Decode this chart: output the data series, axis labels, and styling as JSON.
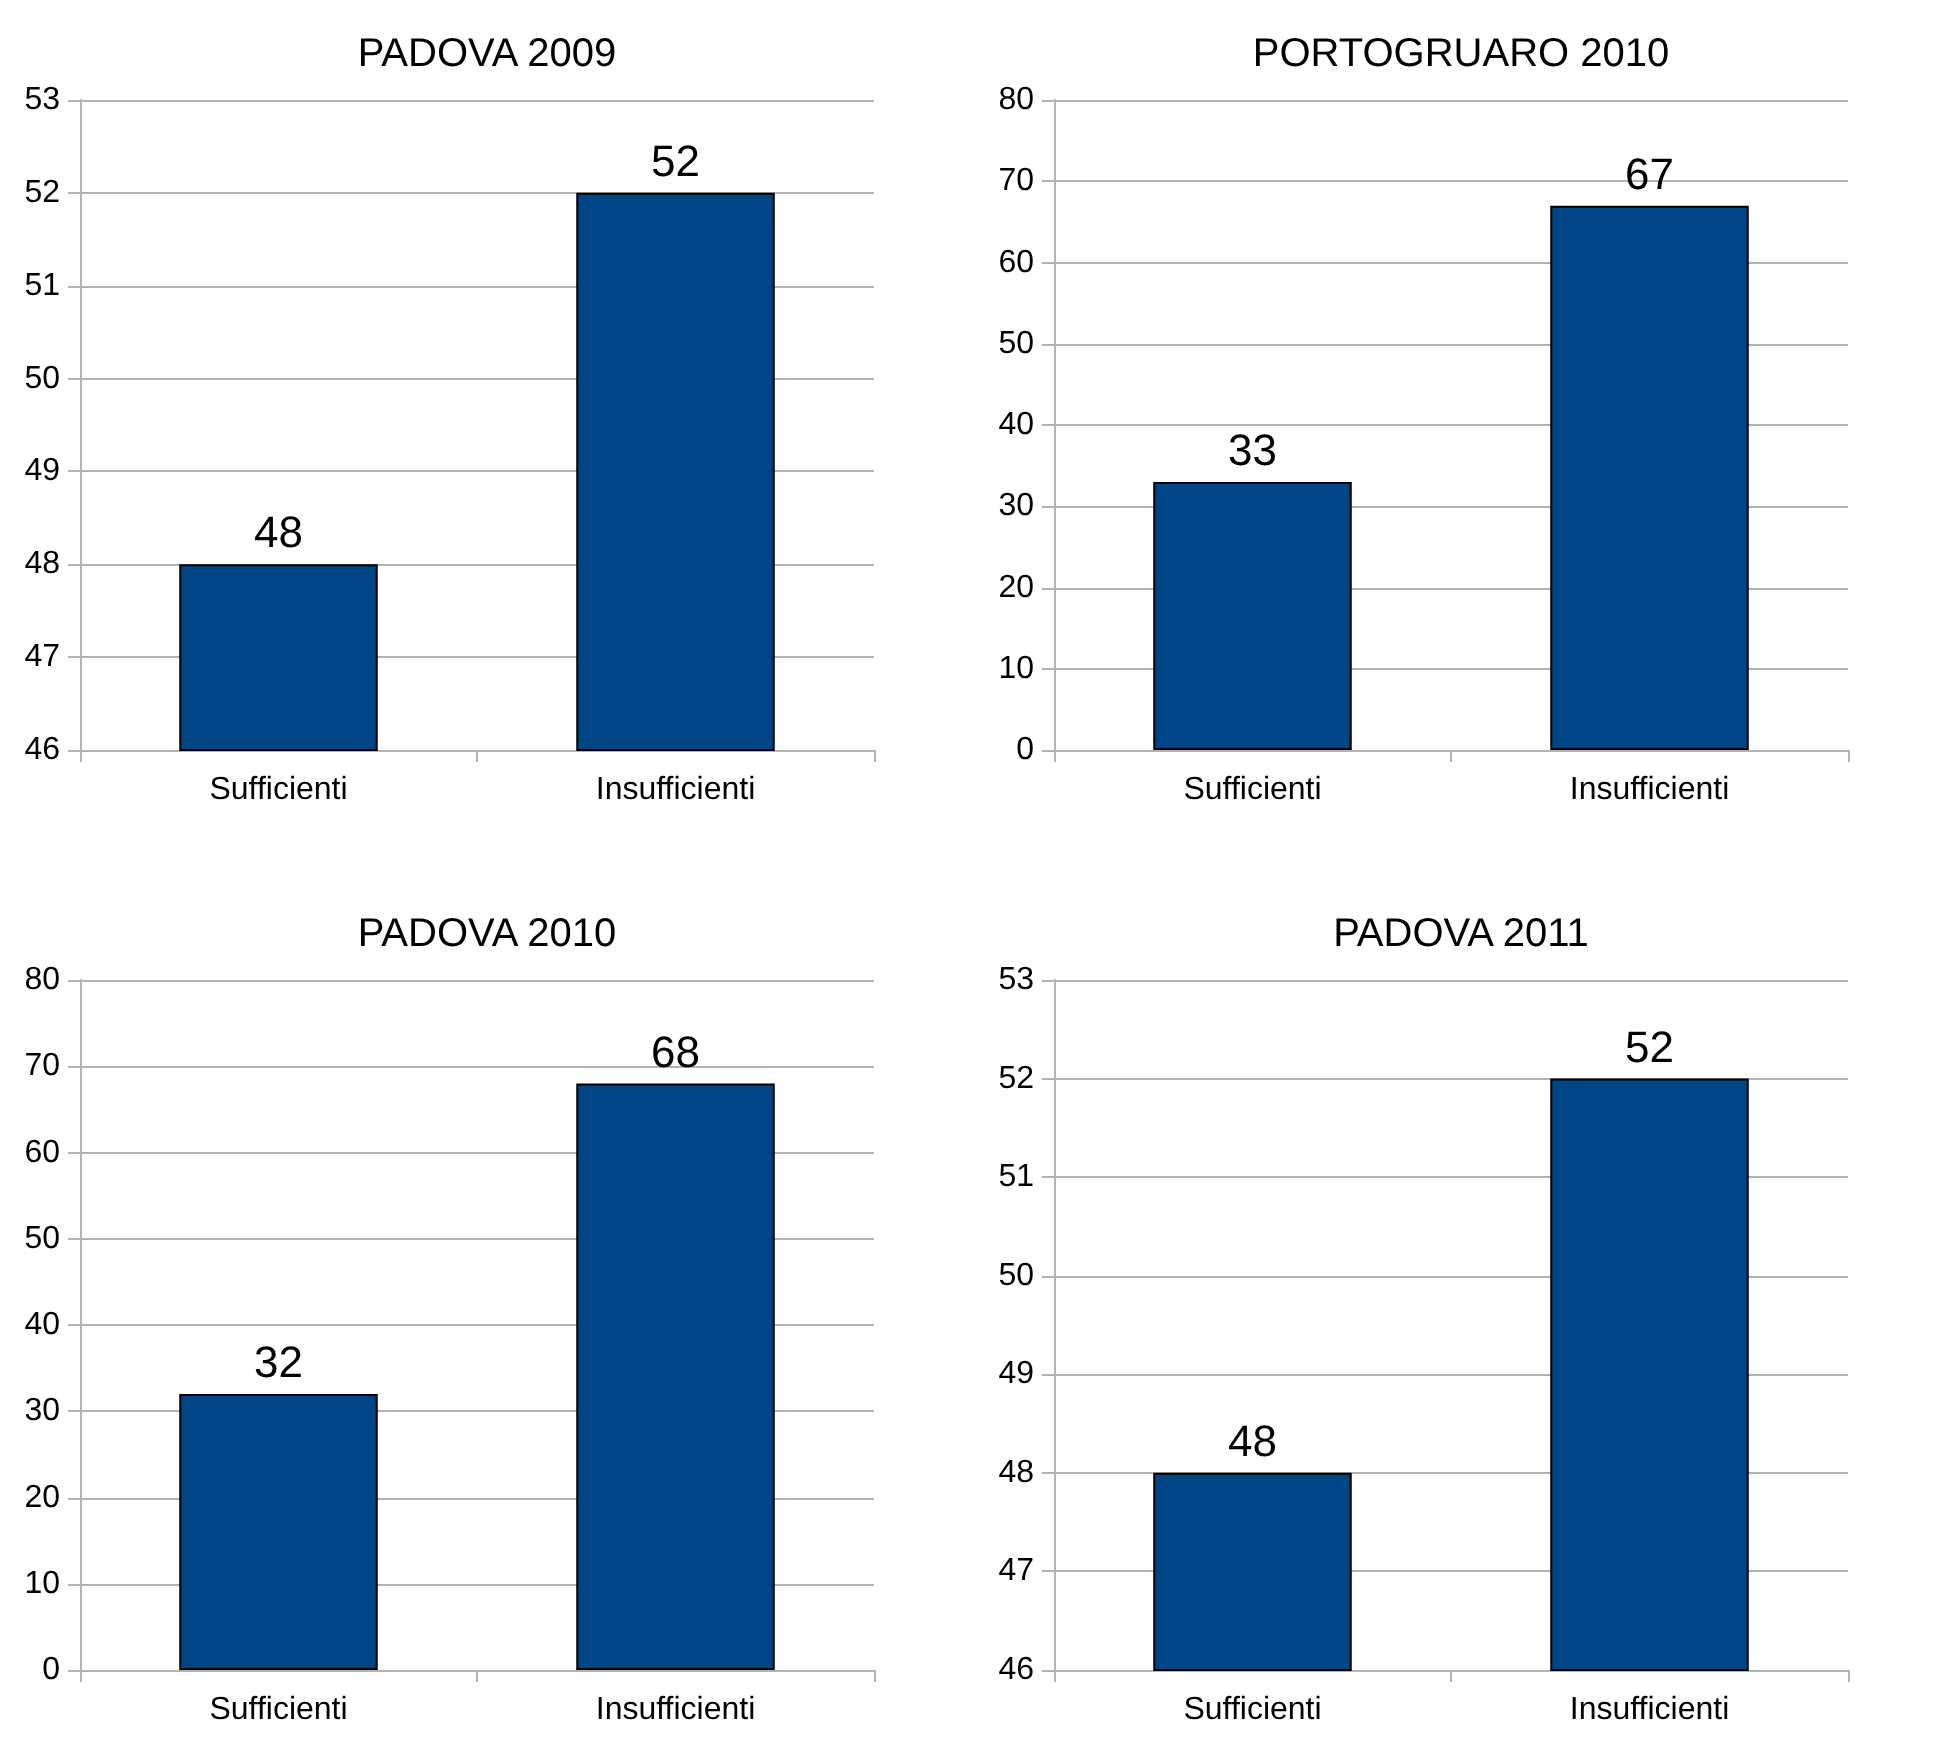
{
  "chart_data": [
    {
      "type": "bar",
      "title": "PADOVA 2009",
      "categories": [
        "Sufficienti",
        "Insufficienti"
      ],
      "values": [
        48,
        52
      ],
      "color": "#004586",
      "ylim": [
        46,
        53
      ],
      "yticks": [
        46,
        47,
        48,
        49,
        50,
        51,
        52,
        53
      ],
      "grid": "y",
      "data_labels": true
    },
    {
      "type": "bar",
      "title": "PORTOGRUARO 2010",
      "categories": [
        "Sufficienti",
        "Insufficienti"
      ],
      "values": [
        33,
        67
      ],
      "color": "#004586",
      "ylim": [
        0,
        80
      ],
      "yticks": [
        0,
        10,
        20,
        30,
        40,
        50,
        60,
        70,
        80
      ],
      "grid": "y",
      "data_labels": true
    },
    {
      "type": "bar",
      "title": "PADOVA 2010",
      "categories": [
        "Sufficienti",
        "Insufficienti"
      ],
      "values": [
        32,
        68
      ],
      "color": "#004586",
      "ylim": [
        0,
        80
      ],
      "yticks": [
        0,
        10,
        20,
        30,
        40,
        50,
        60,
        70,
        80
      ],
      "grid": "y",
      "data_labels": true
    },
    {
      "type": "bar",
      "title": "PADOVA 2011",
      "categories": [
        "Sufficienti",
        "Insufficienti"
      ],
      "values": [
        48,
        52
      ],
      "color": "#004586",
      "ylim": [
        46,
        53
      ],
      "yticks": [
        46,
        47,
        48,
        49,
        50,
        51,
        52,
        53
      ],
      "grid": "y",
      "data_labels": true
    }
  ]
}
